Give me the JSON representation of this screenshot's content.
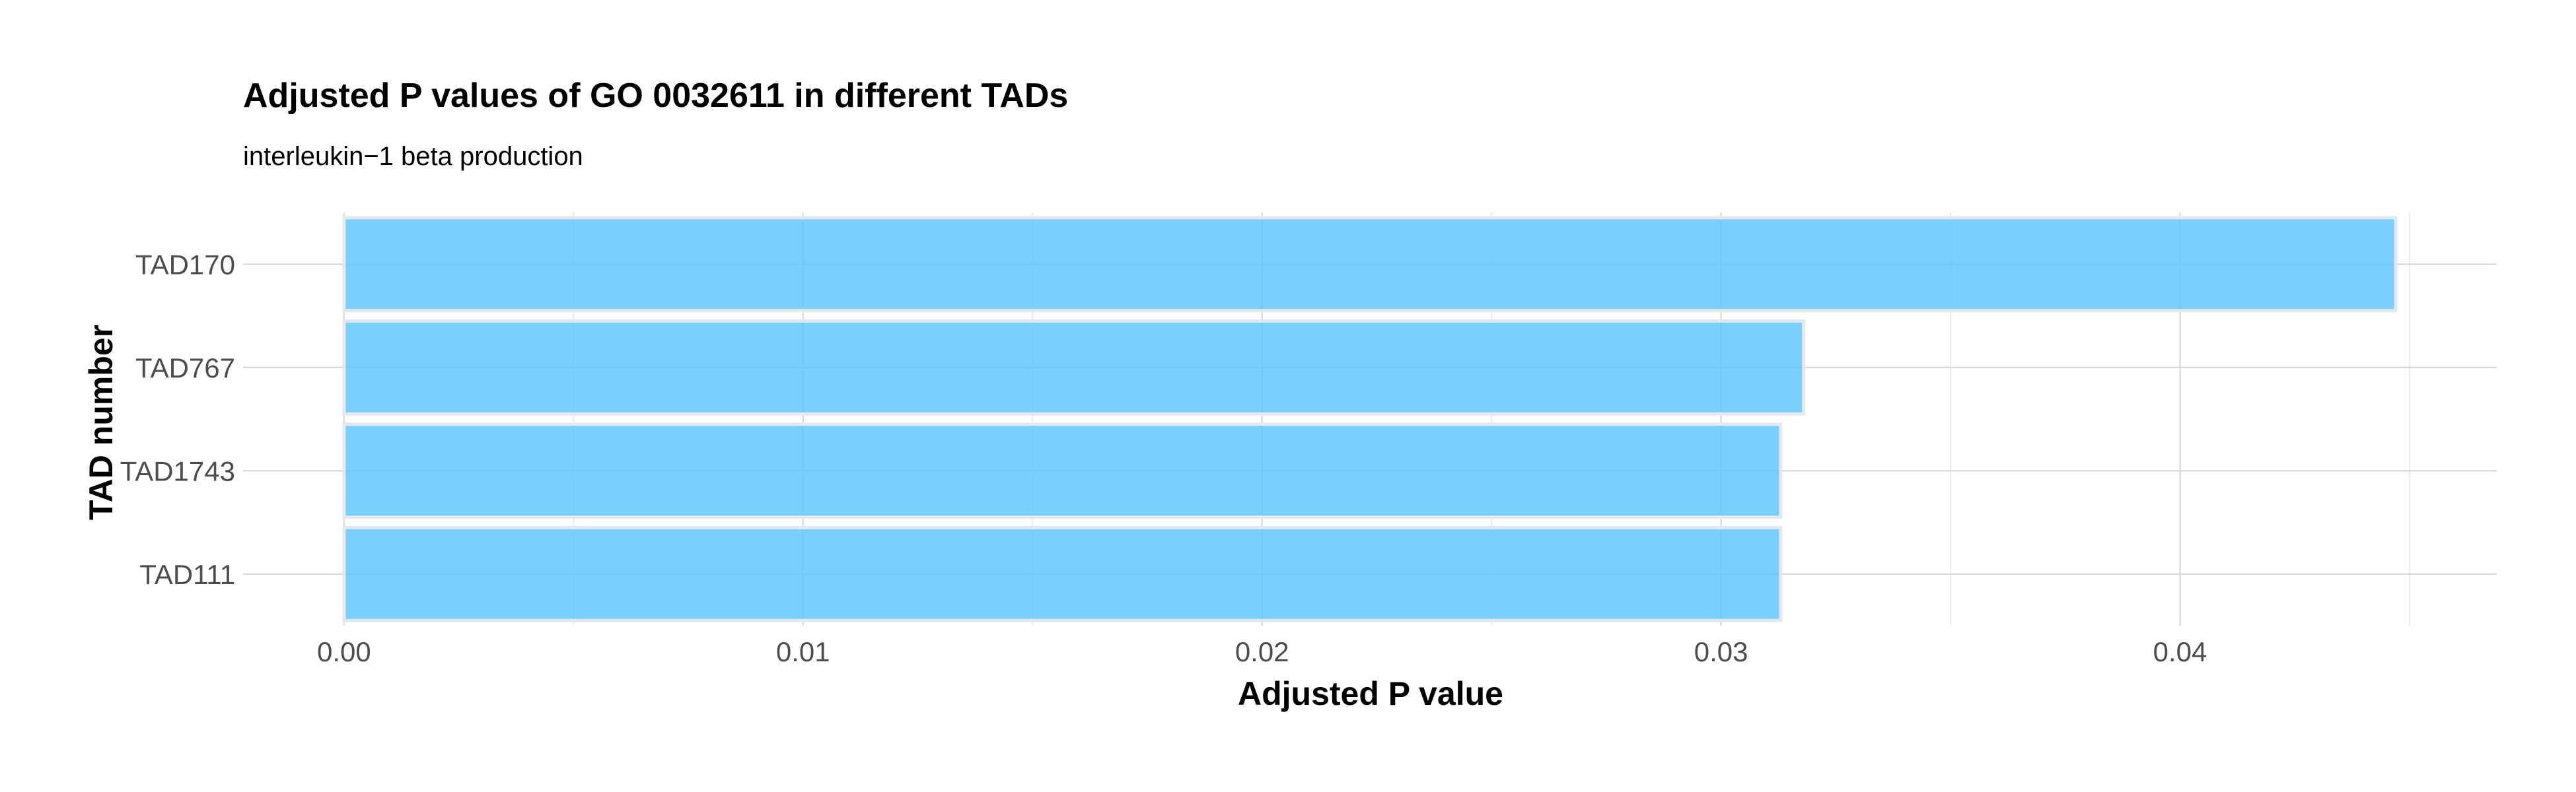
{
  "chart_data": {
    "type": "bar",
    "orientation": "horizontal",
    "title": "Adjusted P values of GO 0032611 in different TADs",
    "subtitle": "interleukin−1 beta production",
    "xlabel": "Adjusted P value",
    "ylabel": "TAD number",
    "categories": [
      "TAD170",
      "TAD767",
      "TAD1743",
      "TAD111"
    ],
    "values": [
      0.0447,
      0.0318,
      0.0313,
      0.0313
    ],
    "xlim": [
      -0.0022,
      0.0469
    ],
    "x_ticks": [
      0.0,
      0.01,
      0.02,
      0.03,
      0.04
    ],
    "x_tick_labels": [
      "0.00",
      "0.01",
      "0.02",
      "0.03",
      "0.04"
    ],
    "grid": true,
    "legend": "none",
    "bar_color": "#5bc6fb",
    "bar_outline_color": "#e3e8ee"
  }
}
